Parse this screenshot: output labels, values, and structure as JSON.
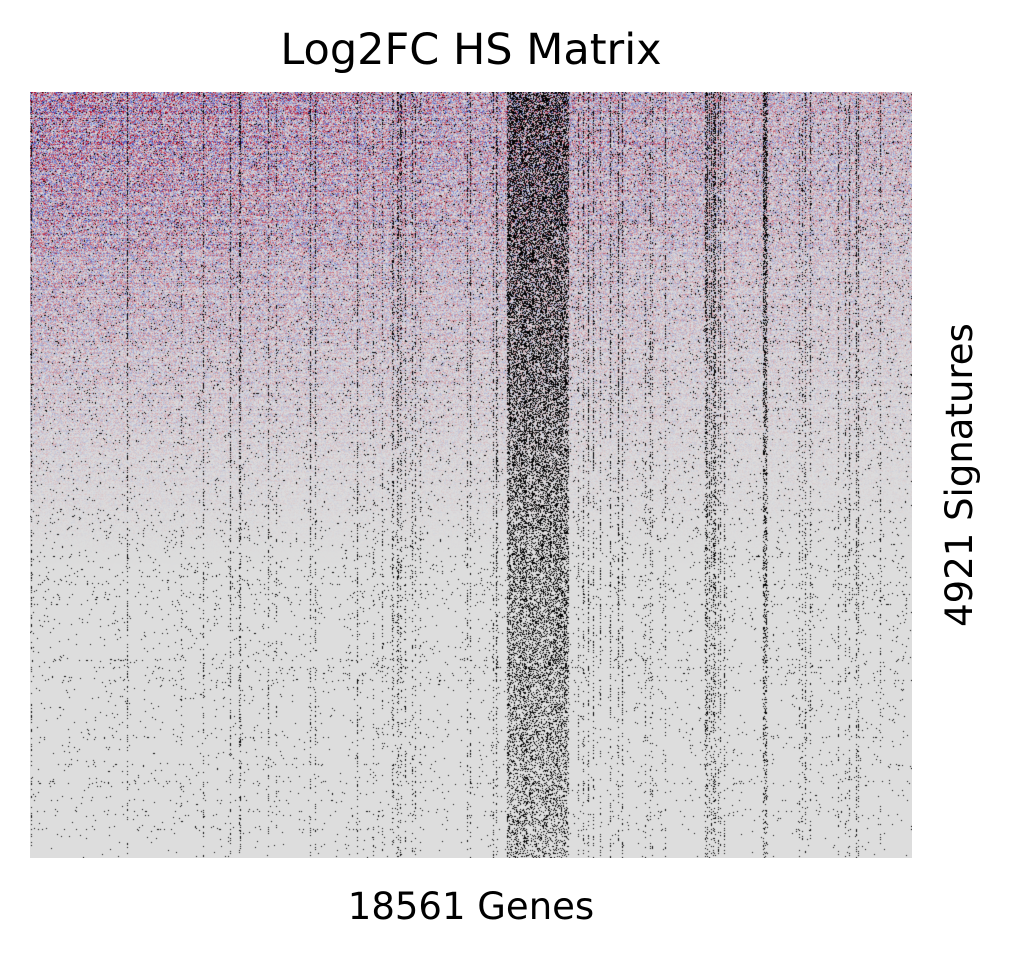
{
  "chart_data": {
    "type": "heatmap",
    "title": "Log2FC HS Matrix",
    "xlabel": "18561 Genes",
    "ylabel": "4921 Signatures",
    "n_columns": 18561,
    "n_rows": 4921,
    "colormap": {
      "negative": "#3b4cc0",
      "neutral": "#dddddd",
      "positive": "#b40426",
      "missing": "#000000"
    },
    "grid": false,
    "legend": "none"
  }
}
